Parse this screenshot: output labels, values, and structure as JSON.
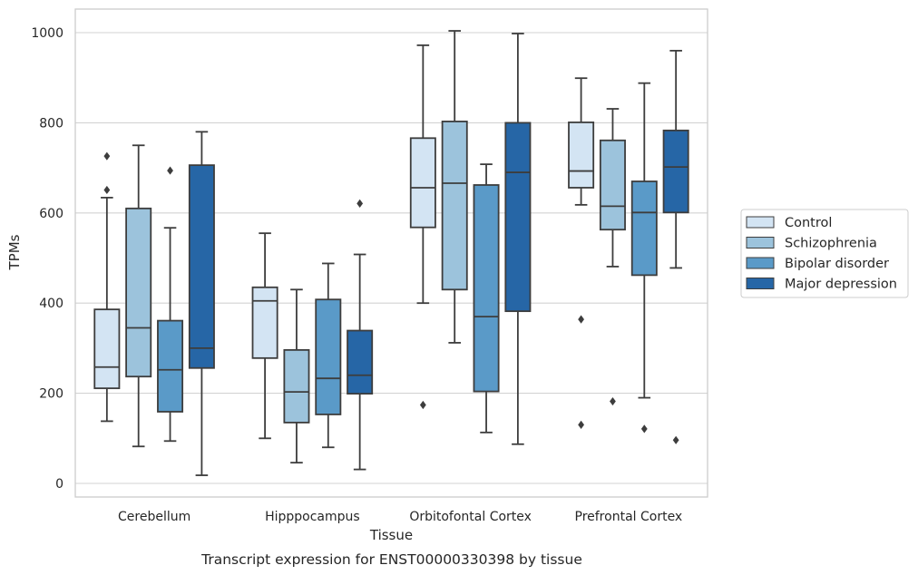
{
  "chart_data": {
    "type": "box",
    "caption": "Transcript expression for ENST00000330398 by tissue",
    "xlabel": "Tissue",
    "ylabel": "TPMs",
    "ylim": [
      -30,
      1055
    ],
    "yticks": [
      0,
      200,
      400,
      600,
      800,
      1000
    ],
    "grid": "horizontal",
    "legend_position": "right",
    "categories": [
      "Cerebellum",
      "Hipppocampus",
      "Orbitofontal Cortex",
      "Prefrontal Cortex"
    ],
    "series": [
      {
        "name": "Control",
        "color": "#d3e4f3",
        "boxes": [
          {
            "whislo": 138,
            "q1": 211,
            "med": 258,
            "q3": 386,
            "whishi": 634,
            "fliers": [
              651,
              726
            ]
          },
          {
            "whislo": 100,
            "q1": 278,
            "med": 405,
            "q3": 435,
            "whishi": 555,
            "fliers": []
          },
          {
            "whislo": 400,
            "q1": 568,
            "med": 656,
            "q3": 766,
            "whishi": 972,
            "fliers": [
              174
            ]
          },
          {
            "whislo": 618,
            "q1": 656,
            "med": 693,
            "q3": 801,
            "whishi": 899,
            "fliers": [
              364,
              130
            ]
          }
        ]
      },
      {
        "name": "Schizophrenia",
        "color": "#9cc3dc",
        "boxes": [
          {
            "whislo": 82,
            "q1": 237,
            "med": 345,
            "q3": 610,
            "whishi": 750,
            "fliers": []
          },
          {
            "whislo": 46,
            "q1": 135,
            "med": 203,
            "q3": 296,
            "whishi": 430,
            "fliers": []
          },
          {
            "whislo": 312,
            "q1": 430,
            "med": 666,
            "q3": 803,
            "whishi": 1004,
            "fliers": []
          },
          {
            "whislo": 481,
            "q1": 563,
            "med": 615,
            "q3": 761,
            "whishi": 831,
            "fliers": [
              182
            ]
          }
        ]
      },
      {
        "name": "Bipolar disorder",
        "color": "#5a9ac8",
        "boxes": [
          {
            "whislo": 94,
            "q1": 159,
            "med": 252,
            "q3": 361,
            "whishi": 567,
            "fliers": [
              694
            ]
          },
          {
            "whislo": 80,
            "q1": 153,
            "med": 233,
            "q3": 408,
            "whishi": 488,
            "fliers": []
          },
          {
            "whislo": 113,
            "q1": 204,
            "med": 370,
            "q3": 662,
            "whishi": 708,
            "fliers": []
          },
          {
            "whislo": 190,
            "q1": 462,
            "med": 601,
            "q3": 670,
            "whishi": 888,
            "fliers": [
              121
            ]
          }
        ]
      },
      {
        "name": "Major depression",
        "color": "#2666a6",
        "boxes": [
          {
            "whislo": 18,
            "q1": 256,
            "med": 300,
            "q3": 706,
            "whishi": 780,
            "fliers": []
          },
          {
            "whislo": 31,
            "q1": 199,
            "med": 240,
            "q3": 339,
            "whishi": 508,
            "fliers": [
              621
            ]
          },
          {
            "whislo": 87,
            "q1": 382,
            "med": 690,
            "q3": 800,
            "whishi": 998,
            "fliers": []
          },
          {
            "whislo": 478,
            "q1": 601,
            "med": 702,
            "q3": 783,
            "whishi": 960,
            "fliers": [
              96
            ]
          }
        ]
      }
    ]
  }
}
